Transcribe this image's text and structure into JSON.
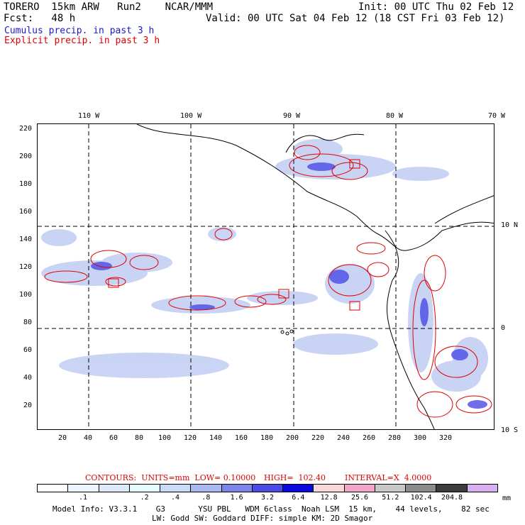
{
  "header": {
    "line1_left": "TORERO  15km ARW   Run2    NCAR/MMM",
    "line1_right": "Init: 00 UTC Thu 02 Feb 12",
    "line2_left": "Fcst:   48 h",
    "line2_right": "Valid: 00 UTC Sat 04 Feb 12 (18 CST Fri 03 Feb 12)",
    "cumulus": "Cumulus precip. in past 3 h",
    "explicit": "Explicit precip. in past 3 h"
  },
  "top_lon_labels": [
    "110 W",
    "100 W",
    "90 W",
    "80 W",
    "70 W"
  ],
  "right_lat_labels": [
    "10 N",
    "0",
    "10 S"
  ],
  "y_ticks": [
    "220",
    "200",
    "180",
    "160",
    "140",
    "120",
    "100",
    "80",
    "60",
    "40",
    "20"
  ],
  "x_ticks": [
    "20",
    "40",
    "60",
    "80",
    "100",
    "120",
    "140",
    "160",
    "180",
    "200",
    "220",
    "240",
    "260",
    "280",
    "300",
    "320"
  ],
  "contours_line": {
    "label": "CONTOURS:  UNITS=mm  LOW= 0.10000",
    "high": "HIGH=  102.40",
    "interval": "INTERVAL=X  4.0000"
  },
  "legend": {
    "colors": [
      "#ffffff",
      "#eef4ff",
      "#ddeafb",
      "#e6fbff",
      "#c8dcf8",
      "#a9b8f0",
      "#7d84ea",
      "#4a4ae6",
      "#0a0ae0",
      "#fad7d7",
      "#f4a6c8",
      "#c8c8c8",
      "#8c8c8c",
      "#3c3c3c",
      "#d9b0f0"
    ],
    "values": [
      ".1",
      ".2",
      ".4",
      ".8",
      "1.6",
      "3.2",
      "6.4",
      "12.8",
      "25.6",
      "51.2",
      "102.4",
      "204.8"
    ],
    "units": "mm"
  },
  "footer": {
    "line1": "Model Info: V3.3.1    G3       YSU PBL   WDM 6class  Noah LSM  15 km,    44 levels,    82 sec",
    "line2": "LW: Godd SW: Goddard DIFF: simple KM: 2D Smagor"
  }
}
